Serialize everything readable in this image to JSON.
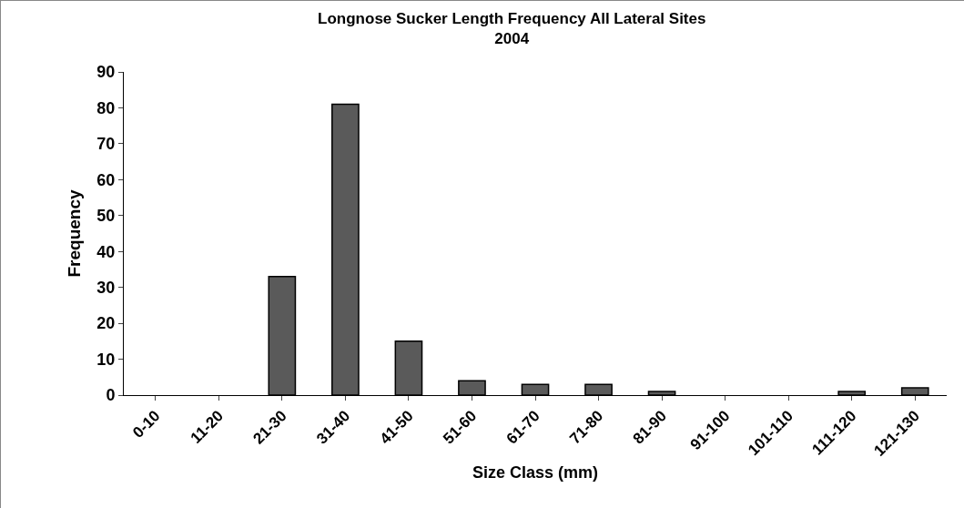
{
  "chart_data": {
    "type": "bar",
    "title": "Longnose Sucker Length Frequency All Lateral Sites\n2004",
    "xlabel": "Size Class (mm)",
    "ylabel": "Frequency",
    "categories": [
      "0-10",
      "11-20",
      "21-30",
      "31-40",
      "41-50",
      "51-60",
      "61-70",
      "71-80",
      "81-90",
      "91-100",
      "101-110",
      "111-120",
      "121-130"
    ],
    "values": [
      0,
      0,
      33,
      81,
      15,
      4,
      3,
      3,
      1,
      0,
      0,
      1,
      2
    ],
    "color": "#5a5a5a",
    "ylim": [
      0,
      90
    ],
    "yticks": [
      0,
      10,
      20,
      30,
      40,
      50,
      60,
      70,
      80,
      90
    ],
    "grid": false,
    "legend": false
  }
}
